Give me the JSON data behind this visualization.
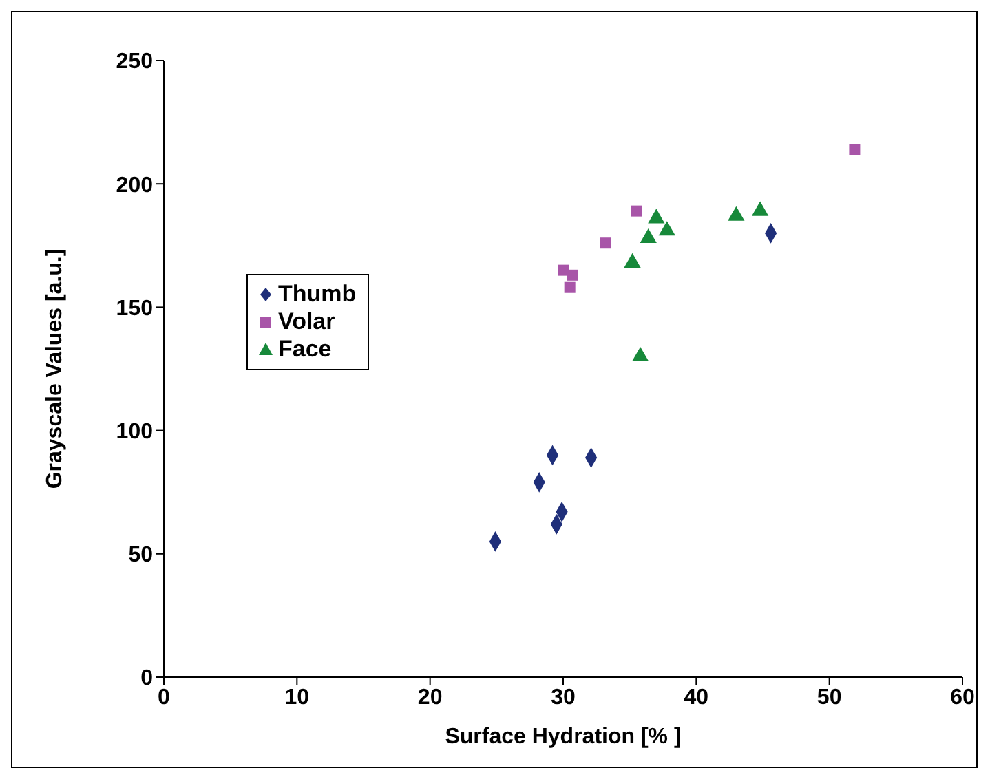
{
  "chart_data": {
    "type": "scatter",
    "xlabel": "Surface Hydration [% ]",
    "ylabel": "Grayscale Values [a.u.]",
    "xlim": [
      0,
      60
    ],
    "xticks": [
      0,
      10,
      20,
      30,
      40,
      50,
      60
    ],
    "ylim": [
      0,
      250
    ],
    "yticks": [
      0,
      50,
      100,
      150,
      200,
      250
    ],
    "grid": false,
    "legend": "left",
    "series": [
      {
        "name": "Thumb",
        "color": "#1f2f7a",
        "marker": "diamond",
        "x": [
          24.9,
          28.2,
          29.2,
          32.1,
          29.9,
          29.5,
          45.6
        ],
        "values": [
          55,
          79,
          90,
          89,
          67,
          62,
          180
        ]
      },
      {
        "name": "Volar",
        "color": "#a855a8",
        "marker": "square",
        "x": [
          30.0,
          30.7,
          30.5,
          33.2,
          35.5,
          51.9
        ],
        "values": [
          165,
          163,
          158,
          176,
          189,
          214
        ]
      },
      {
        "name": "Face",
        "color": "#17893a",
        "marker": "triangle",
        "x": [
          35.2,
          36.4,
          37.0,
          37.8,
          35.8,
          43.0,
          44.8
        ],
        "values": [
          168,
          178,
          186,
          181,
          130,
          187,
          189
        ]
      }
    ]
  }
}
